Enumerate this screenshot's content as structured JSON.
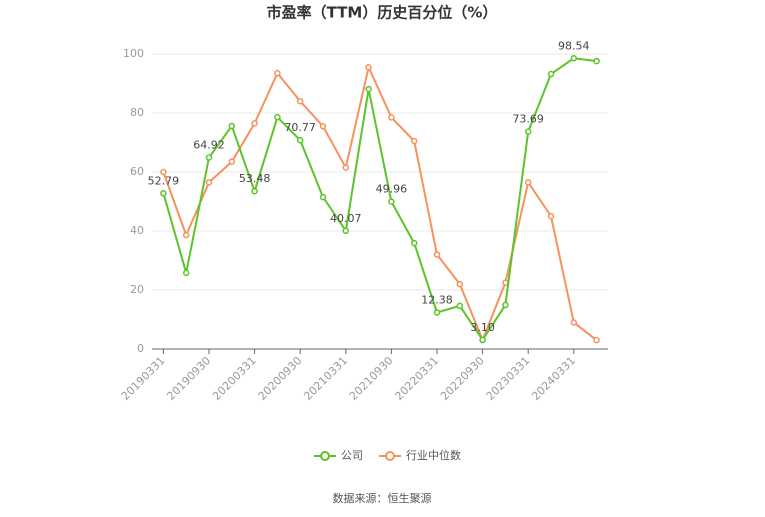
{
  "chart_data": {
    "type": "line",
    "title": "市盈率（TTM）历史百分位（%）",
    "categories": [
      "20190331",
      null,
      "20190930",
      null,
      "20200331",
      null,
      "20200930",
      null,
      "20210331",
      null,
      "20210930",
      null,
      "20220331",
      null,
      "20220930",
      null,
      "20230331",
      null,
      "20240331",
      null
    ],
    "series": [
      {
        "name": "公司",
        "color": "#5cc42a",
        "values": [
          52.79,
          25.8,
          64.92,
          75.6,
          53.48,
          78.6,
          70.77,
          51.5,
          40.07,
          88.1,
          49.96,
          35.9,
          12.38,
          14.6,
          3.1,
          14.9,
          73.69,
          93.2,
          98.54,
          97.6
        ],
        "value_labels": [
          "52.79",
          null,
          "64.92",
          null,
          "53.48",
          null,
          "70.77",
          null,
          "40.07",
          null,
          "49.96",
          null,
          "12.38",
          null,
          "3.10",
          null,
          "73.69",
          null,
          "98.54",
          null
        ]
      },
      {
        "name": "行业中位数",
        "color": "#f5925e",
        "values": [
          60,
          38.6,
          56.5,
          63.5,
          76.5,
          93.5,
          84,
          75.5,
          61.5,
          95.5,
          78.5,
          70.5,
          32,
          22,
          3,
          22.5,
          56.5,
          45,
          9,
          3
        ]
      }
    ],
    "ylim": [
      0,
      100
    ],
    "yticks": [
      0,
      20,
      40,
      60,
      80,
      100
    ],
    "grid": true,
    "legend": "bottom",
    "source": "数据来源：恒生聚源"
  }
}
